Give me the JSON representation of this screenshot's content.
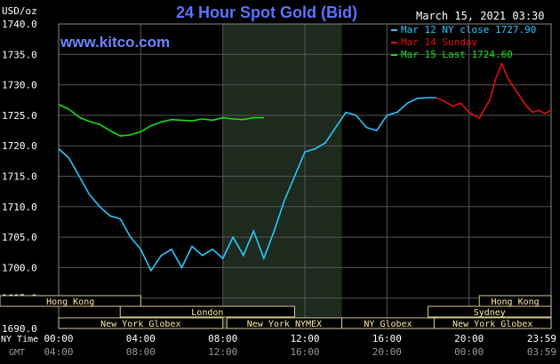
{
  "chart_data": {
    "type": "line",
    "title": "24 Hour Spot Gold (Bid)",
    "site": "www.kitco.com",
    "unit": "USD/oz",
    "timestamp": "March 15, 2021 03:30",
    "ylim": [
      1690.0,
      1740.0
    ],
    "y_ticks": [
      "1690.0",
      "1695.0",
      "1700.0",
      "1705.0",
      "1710.0",
      "1715.0",
      "1720.0",
      "1725.0",
      "1730.0",
      "1735.0",
      "1740.0"
    ],
    "x_ticks_ny": [
      "00:00",
      "04:00",
      "08:00",
      "12:00",
      "16:00",
      "20:00",
      "23:59"
    ],
    "x_ticks_gmt": [
      "04:00",
      "08:00",
      "12:00",
      "16:00",
      "20:00",
      "00:00",
      "03:59"
    ],
    "x_axis_label_ny": "NY Time",
    "x_axis_label_gmt": "GMT",
    "grid": true,
    "legend_position": "top-right",
    "series": [
      {
        "name": "Mar 12 NY close 1727.90",
        "color": "#29c8ff",
        "x": [
          0,
          0.5,
          1,
          1.5,
          2,
          2.5,
          3,
          3.5,
          4,
          4.5,
          5,
          5.5,
          6,
          6.5,
          7,
          7.5,
          8,
          8.5,
          9,
          9.5,
          10,
          10.5,
          11,
          11.5,
          12,
          12.5,
          13,
          13.5,
          14,
          14.5,
          15,
          15.5,
          16,
          16.5,
          17,
          17.5,
          18,
          18.4
        ],
        "values": [
          1719.5,
          1718,
          1715,
          1712,
          1710,
          1708.5,
          1708,
          1705,
          1703,
          1699.5,
          1702,
          1703,
          1700,
          1703.5,
          1702,
          1703,
          1701.5,
          1705,
          1702,
          1706,
          1701.5,
          1706,
          1711,
          1715,
          1719,
          1719.5,
          1720.5,
          1723,
          1725.5,
          1725,
          1723,
          1722.5,
          1725,
          1725.5,
          1727,
          1727.8,
          1727.9,
          1727.9
        ]
      },
      {
        "name": "Mar 14 Sunday",
        "color": "#e01010",
        "x": [
          18.4,
          18.8,
          19.2,
          19.6,
          20,
          20.5,
          21,
          21.3,
          21.6,
          21.9,
          22.2,
          22.5,
          22.8,
          23.1,
          23.4,
          23.7,
          24
        ],
        "values": [
          1727.9,
          1727.3,
          1726.5,
          1727,
          1725.5,
          1724.5,
          1727.5,
          1731,
          1733.5,
          1731,
          1729.5,
          1728,
          1726.5,
          1725.5,
          1725.8,
          1725.3,
          1725.8
        ]
      },
      {
        "name": "Mar 15 Last 1724.60",
        "color": "#19e019",
        "x": [
          0,
          0.5,
          1,
          1.5,
          2,
          2.5,
          3,
          3.5,
          4,
          4.5,
          5,
          5.5,
          6,
          6.5,
          7,
          7.5,
          8,
          8.5,
          9,
          9.5,
          10
        ],
        "values": [
          1726.8,
          1726,
          1724.7,
          1724,
          1723.5,
          1722.5,
          1721.6,
          1721.8,
          1722.3,
          1723.3,
          1723.9,
          1724.3,
          1724.2,
          1724.1,
          1724.4,
          1724.2,
          1724.6,
          1724.4,
          1724.3,
          1724.6,
          1724.6
        ]
      }
    ],
    "session_bars": [
      {
        "name": "Hong Kong",
        "row": 0,
        "start": -4,
        "end": 4
      },
      {
        "name": "Hong Kong",
        "row": 0,
        "start": 20.5,
        "end": 24
      },
      {
        "name": "London",
        "row": 1,
        "start": 3,
        "end": 11.5
      },
      {
        "name": "Sydney",
        "row": 1,
        "start": 18,
        "end": 24
      },
      {
        "name": "New York Globex",
        "row": 2,
        "start": 0,
        "end": 8
      },
      {
        "name": "New York NYMEX",
        "row": 2,
        "start": 8.2,
        "end": 13.8
      },
      {
        "name": "NY Globex",
        "row": 2,
        "start": 13.8,
        "end": 18.3
      },
      {
        "name": "New York Globex",
        "row": 2,
        "start": 18.3,
        "end": 24
      }
    ]
  }
}
